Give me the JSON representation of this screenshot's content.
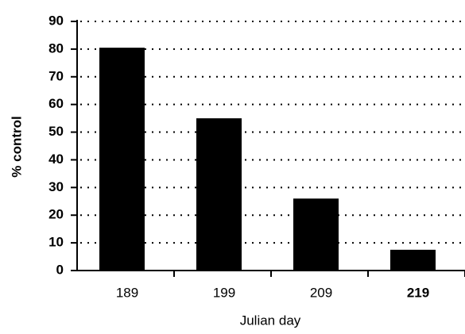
{
  "chart_data": {
    "type": "bar",
    "y_label": "% control",
    "x_label": "Julian day",
    "categories": [
      "189",
      "199",
      "209",
      "219"
    ],
    "values": [
      80.5,
      55,
      26,
      7.5
    ],
    "color": "#000000",
    "ylim": [
      0,
      90
    ],
    "yticks": [
      0,
      10,
      20,
      30,
      40,
      50,
      60,
      70,
      80,
      90
    ],
    "grid": true
  }
}
